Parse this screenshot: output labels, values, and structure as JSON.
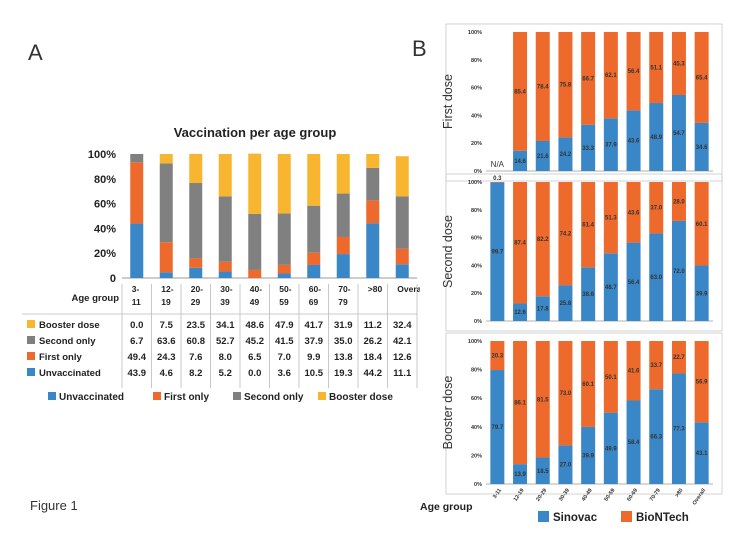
{
  "panel_a_letter": "A",
  "panel_b_letter": "B",
  "figure_caption": "Figure 1",
  "colors": {
    "unvaccinated": "#3a87c8",
    "first_only": "#ed6a2c",
    "second_only": "#808080",
    "booster": "#f8b52f",
    "sinovac": "#3a87c8",
    "biontech": "#ed6a2c"
  },
  "chart_data": [
    {
      "type": "bar",
      "stacked": true,
      "title": "Vaccination per age group",
      "categories": [
        "3-\n11",
        "12-\n19",
        "20-\n29",
        "30-\n39",
        "40-\n49",
        "50-\n59",
        "60-\n69",
        "70-\n79",
        ">80",
        "Overall"
      ],
      "xlabel": "Age group",
      "ylim": [
        0,
        100
      ],
      "yticks": [
        "0",
        "20%",
        "40%",
        "60%",
        "80%",
        "100%"
      ],
      "legend_position": "bottom",
      "series": [
        {
          "name": "Unvaccinated",
          "table_label": "Unvaccinated",
          "values": [
            43.9,
            4.6,
            8.2,
            5.2,
            0.0,
            3.6,
            10.5,
            19.3,
            44.2,
            11.1
          ]
        },
        {
          "name": "First only",
          "table_label": "First only",
          "values": [
            49.4,
            24.3,
            7.6,
            8.0,
            6.5,
            7.0,
            9.9,
            13.8,
            18.4,
            12.6
          ]
        },
        {
          "name": "Second only",
          "table_label": "Second only",
          "values": [
            6.7,
            63.6,
            60.8,
            52.7,
            45.2,
            41.5,
            37.9,
            35.0,
            26.2,
            42.1
          ]
        },
        {
          "name": "Booster dose",
          "table_label": "Booster dose",
          "values": [
            0.0,
            7.5,
            23.5,
            34.1,
            48.6,
            47.9,
            41.7,
            31.9,
            11.2,
            32.4
          ]
        }
      ],
      "table_values": {
        "Booster dose": [
          "0.0",
          "7.5",
          "23.5",
          "34.1",
          "48.6",
          "47.9",
          "41.7",
          "31.9",
          "11.2",
          "32.4"
        ],
        "Second only": [
          "6.7",
          "63.6",
          "60.8",
          "52.7",
          "45.2",
          "41.5",
          "37.9",
          "35.0",
          "26.2",
          "42.1"
        ],
        "First only": [
          "49.4",
          "24.3",
          "7.6",
          "8.0",
          "6.5",
          "7.0",
          "9.9",
          "13.8",
          "18.4",
          "12.6"
        ],
        "Unvaccinated": [
          "43.9",
          "4.6",
          "8.2",
          "5.2",
          "0.0",
          "3.6",
          "10.5",
          "19.3",
          "44.2",
          "11.1"
        ]
      }
    },
    {
      "type": "bar",
      "stacked": true,
      "ylabel": "First dose",
      "categories": [
        "3-11",
        "12-19",
        "20-29",
        "30-39",
        "40-49",
        "50-59",
        "60-69",
        "70-79",
        ">80",
        "Overall"
      ],
      "yticks": [
        "0%",
        "20%",
        "40%",
        "60%",
        "80%",
        "100%"
      ],
      "ylim": [
        0,
        100
      ],
      "na_label": "N/A",
      "series": [
        {
          "name": "Sinovac",
          "values": [
            null,
            14.6,
            21.6,
            24.2,
            33.3,
            37.9,
            43.6,
            48.9,
            54.7,
            34.6
          ],
          "labels": [
            "",
            "14.6",
            "21.6",
            "24.2",
            "33.3",
            "37.9",
            "43.6",
            "48.9",
            "54.7",
            "34.6"
          ]
        },
        {
          "name": "BioNTech",
          "values": [
            null,
            85.4,
            78.4,
            75.8,
            66.7,
            62.1,
            56.4,
            51.1,
            45.3,
            65.4
          ],
          "labels": [
            "",
            "85.4",
            "78.4",
            "75.8",
            "66.7",
            "62.1",
            "56.4",
            "51.1",
            "45.3",
            "65.4"
          ]
        }
      ]
    },
    {
      "type": "bar",
      "stacked": true,
      "ylabel": "Second dose",
      "categories": [
        "3-11",
        "12-19",
        "20-29",
        "30-39",
        "40-49",
        "50-59",
        "60-69",
        "70-79",
        ">80",
        "Overall"
      ],
      "yticks": [
        "0%",
        "20%",
        "40%",
        "60%",
        "80%",
        "100%"
      ],
      "ylim": [
        0,
        100
      ],
      "series": [
        {
          "name": "Sinovac",
          "values": [
            99.7,
            12.6,
            17.8,
            25.8,
            38.6,
            48.7,
            56.4,
            63.0,
            72.0,
            39.9
          ],
          "labels": [
            "99.7",
            "12.6",
            "17.8",
            "25.8",
            "38.6",
            "48.7",
            "56.4",
            "63.0",
            "72.0",
            "39.9"
          ]
        },
        {
          "name": "BioNTech",
          "values": [
            0.3,
            87.4,
            82.2,
            74.2,
            61.4,
            51.3,
            43.6,
            37.0,
            28.0,
            60.1
          ],
          "labels": [
            "0.3",
            "87.4",
            "82.2",
            "74.2",
            "61.4",
            "51.3",
            "43.6",
            "37.0",
            "28.0",
            "60.1"
          ]
        }
      ]
    },
    {
      "type": "bar",
      "stacked": true,
      "ylabel": "Booster dose",
      "categories": [
        "3-11",
        "12-19",
        "20-29",
        "30-39",
        "40-49",
        "50-59",
        "60-69",
        "70-79",
        ">80",
        "Overall"
      ],
      "xlabel": "Age group",
      "yticks": [
        "0%",
        "20%",
        "40%",
        "60%",
        "80%",
        "100%"
      ],
      "ylim": [
        0,
        100
      ],
      "legend_position": "bottom",
      "series": [
        {
          "name": "Sinovac",
          "values": [
            79.7,
            13.9,
            18.5,
            27.0,
            39.9,
            49.9,
            58.4,
            66.3,
            77.3,
            43.1
          ],
          "labels": [
            "79.7",
            "13.9",
            "18.5",
            "27.0",
            "39.9",
            "49.9",
            "58.4",
            "66.3",
            "77.3",
            "43.1"
          ]
        },
        {
          "name": "BioNTech",
          "values": [
            20.3,
            86.1,
            81.5,
            73.0,
            60.1,
            50.1,
            41.6,
            33.7,
            22.7,
            56.9
          ],
          "labels": [
            "20.3",
            "86.1",
            "81.5",
            "73.0",
            "60.1",
            "50.1",
            "41.6",
            "33.7",
            "22.7",
            "56.9"
          ]
        }
      ]
    }
  ]
}
